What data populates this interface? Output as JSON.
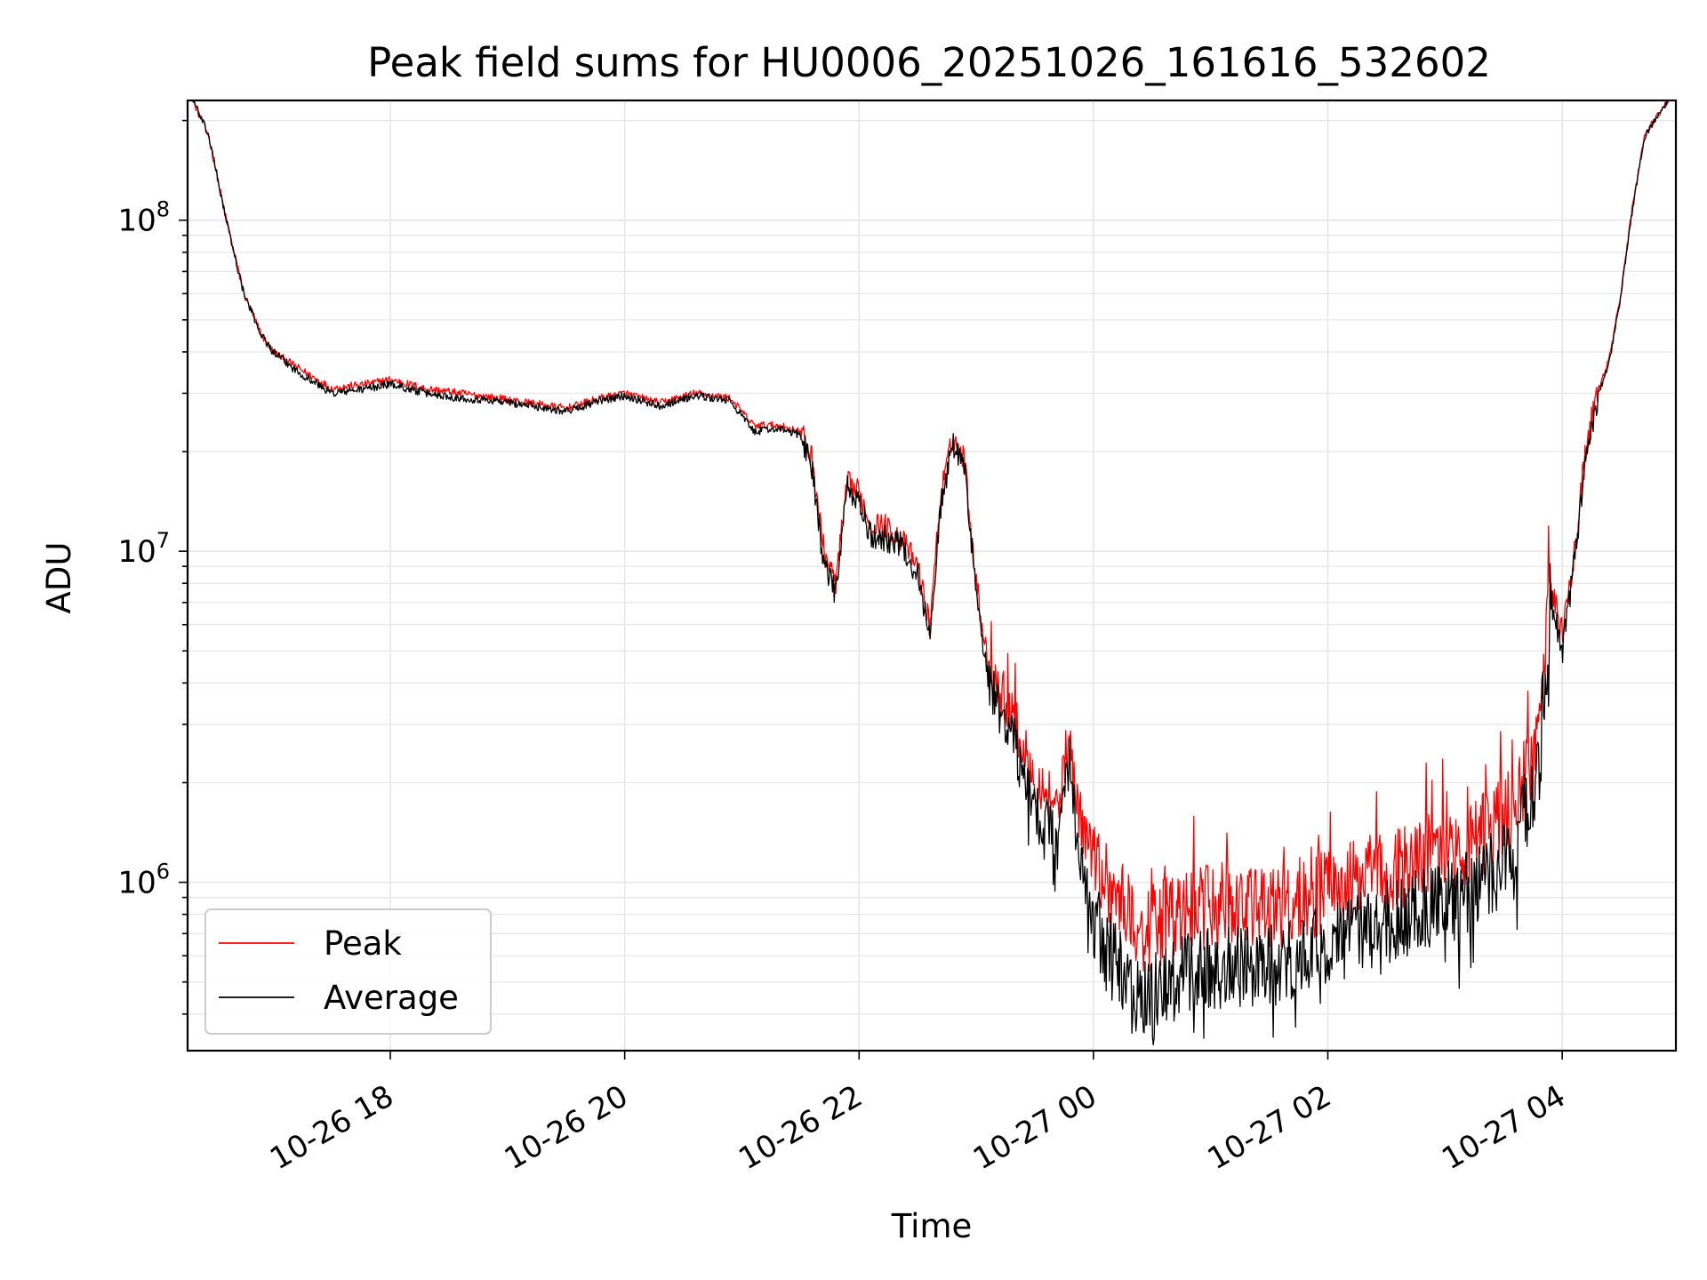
{
  "chart_data": {
    "type": "line",
    "title": "Peak field sums for HU0006_20251026_161616_532602",
    "xlabel": "Time",
    "ylabel": "ADU",
    "yscale": "log",
    "ylim": [
      310000,
      230000000
    ],
    "xlim_hours": [
      16.27,
      28.97
    ],
    "x_unit": "hours since 2025-10-26 00:00",
    "grid": true,
    "legend_position": "lower-left",
    "x_ticks": [
      {
        "value": 18,
        "label": "10-26 18"
      },
      {
        "value": 20,
        "label": "10-26 20"
      },
      {
        "value": 22,
        "label": "10-26 22"
      },
      {
        "value": 24,
        "label": "10-27 00"
      },
      {
        "value": 26,
        "label": "10-27 02"
      },
      {
        "value": 28,
        "label": "10-27 04"
      }
    ],
    "y_ticks": [
      {
        "value": 1000000,
        "base": "10",
        "exp": "6"
      },
      {
        "value": 10000000,
        "base": "10",
        "exp": "7"
      },
      {
        "value": 100000000,
        "base": "10",
        "exp": "8"
      }
    ],
    "series": [
      {
        "name": "Peak",
        "color": "#ff0000",
        "x": [
          16.27,
          16.45,
          16.6,
          16.75,
          16.9,
          17.0,
          17.2,
          17.5,
          17.8,
          18.0,
          18.3,
          18.6,
          18.9,
          19.2,
          19.5,
          19.8,
          20.0,
          20.3,
          20.6,
          20.9,
          21.1,
          21.3,
          21.5,
          21.6,
          21.7,
          21.8,
          21.9,
          22.0,
          22.1,
          22.2,
          22.35,
          22.5,
          22.6,
          22.7,
          22.8,
          22.9,
          23.0,
          23.1,
          23.2,
          23.3,
          23.4,
          23.5,
          23.6,
          23.7,
          23.8,
          23.85,
          23.9,
          24.0,
          24.2,
          24.4,
          24.6,
          24.8,
          25.0,
          25.2,
          25.4,
          25.6,
          25.8,
          26.0,
          26.2,
          26.4,
          26.6,
          26.8,
          27.0,
          27.2,
          27.4,
          27.6,
          27.8,
          27.9,
          28.0,
          28.1,
          28.2,
          28.3,
          28.4,
          28.5,
          28.6,
          28.7,
          28.97
        ],
        "values": [
          250000000,
          180000000,
          100000000,
          60000000,
          45000000,
          40000000,
          36000000,
          31000000,
          32000000,
          33000000,
          31000000,
          30000000,
          29000000,
          28000000,
          27000000,
          29000000,
          30000000,
          28000000,
          30000000,
          29000000,
          24000000,
          24000000,
          23000000,
          19000000,
          10000000,
          8000000,
          16000000,
          15000000,
          12000000,
          12000000,
          11000000,
          9000000,
          6000000,
          15000000,
          22000000,
          19000000,
          8000000,
          4500000,
          3800000,
          3400000,
          2500000,
          2100000,
          1900000,
          1700000,
          2700000,
          1800000,
          1500000,
          1200000,
          900000,
          700000,
          760000,
          820000,
          840000,
          860000,
          820000,
          850000,
          900000,
          940000,
          1000000,
          1050000,
          1100000,
          1200000,
          1250000,
          1300000,
          1450000,
          1700000,
          2600000,
          8000000,
          5600000,
          9500000,
          20000000,
          30000000,
          38000000,
          60000000,
          110000000,
          180000000,
          250000000
        ]
      },
      {
        "name": "Average",
        "color": "#000000",
        "x": [
          16.27,
          16.45,
          16.6,
          16.75,
          16.9,
          17.0,
          17.2,
          17.5,
          17.8,
          18.0,
          18.3,
          18.6,
          18.9,
          19.2,
          19.5,
          19.8,
          20.0,
          20.3,
          20.6,
          20.9,
          21.1,
          21.3,
          21.5,
          21.6,
          21.7,
          21.8,
          21.9,
          22.0,
          22.1,
          22.2,
          22.35,
          22.5,
          22.6,
          22.7,
          22.8,
          22.9,
          23.0,
          23.1,
          23.2,
          23.3,
          23.4,
          23.5,
          23.6,
          23.7,
          23.8,
          23.85,
          23.9,
          24.0,
          24.2,
          24.4,
          24.6,
          24.8,
          25.0,
          25.2,
          25.4,
          25.6,
          25.8,
          26.0,
          26.2,
          26.4,
          26.6,
          26.8,
          27.0,
          27.2,
          27.4,
          27.6,
          27.8,
          27.9,
          28.0,
          28.1,
          28.2,
          28.3,
          28.4,
          28.5,
          28.6,
          28.7,
          28.97
        ],
        "values": [
          250000000,
          180000000,
          100000000,
          60000000,
          45000000,
          40000000,
          35000000,
          30000000,
          31000000,
          32000000,
          30000000,
          29000000,
          28500000,
          27500000,
          26500000,
          28500000,
          29500000,
          27500000,
          29500000,
          28500000,
          23000000,
          23500000,
          22500000,
          18000000,
          9000000,
          7500000,
          15500000,
          14000000,
          11000000,
          11000000,
          10500000,
          8500000,
          5500000,
          14000000,
          21000000,
          18000000,
          7500000,
          4000000,
          3300000,
          2900000,
          2100000,
          1700000,
          1500000,
          1300000,
          2300000,
          1400000,
          1100000,
          750000,
          550000,
          430000,
          470000,
          520000,
          550000,
          560000,
          540000,
          560000,
          600000,
          650000,
          700000,
          740000,
          780000,
          820000,
          860000,
          920000,
          1050000,
          1300000,
          2200000,
          7500000,
          5000000,
          9000000,
          19000000,
          29000000,
          37000000,
          59000000,
          108000000,
          178000000,
          250000000
        ]
      }
    ]
  }
}
